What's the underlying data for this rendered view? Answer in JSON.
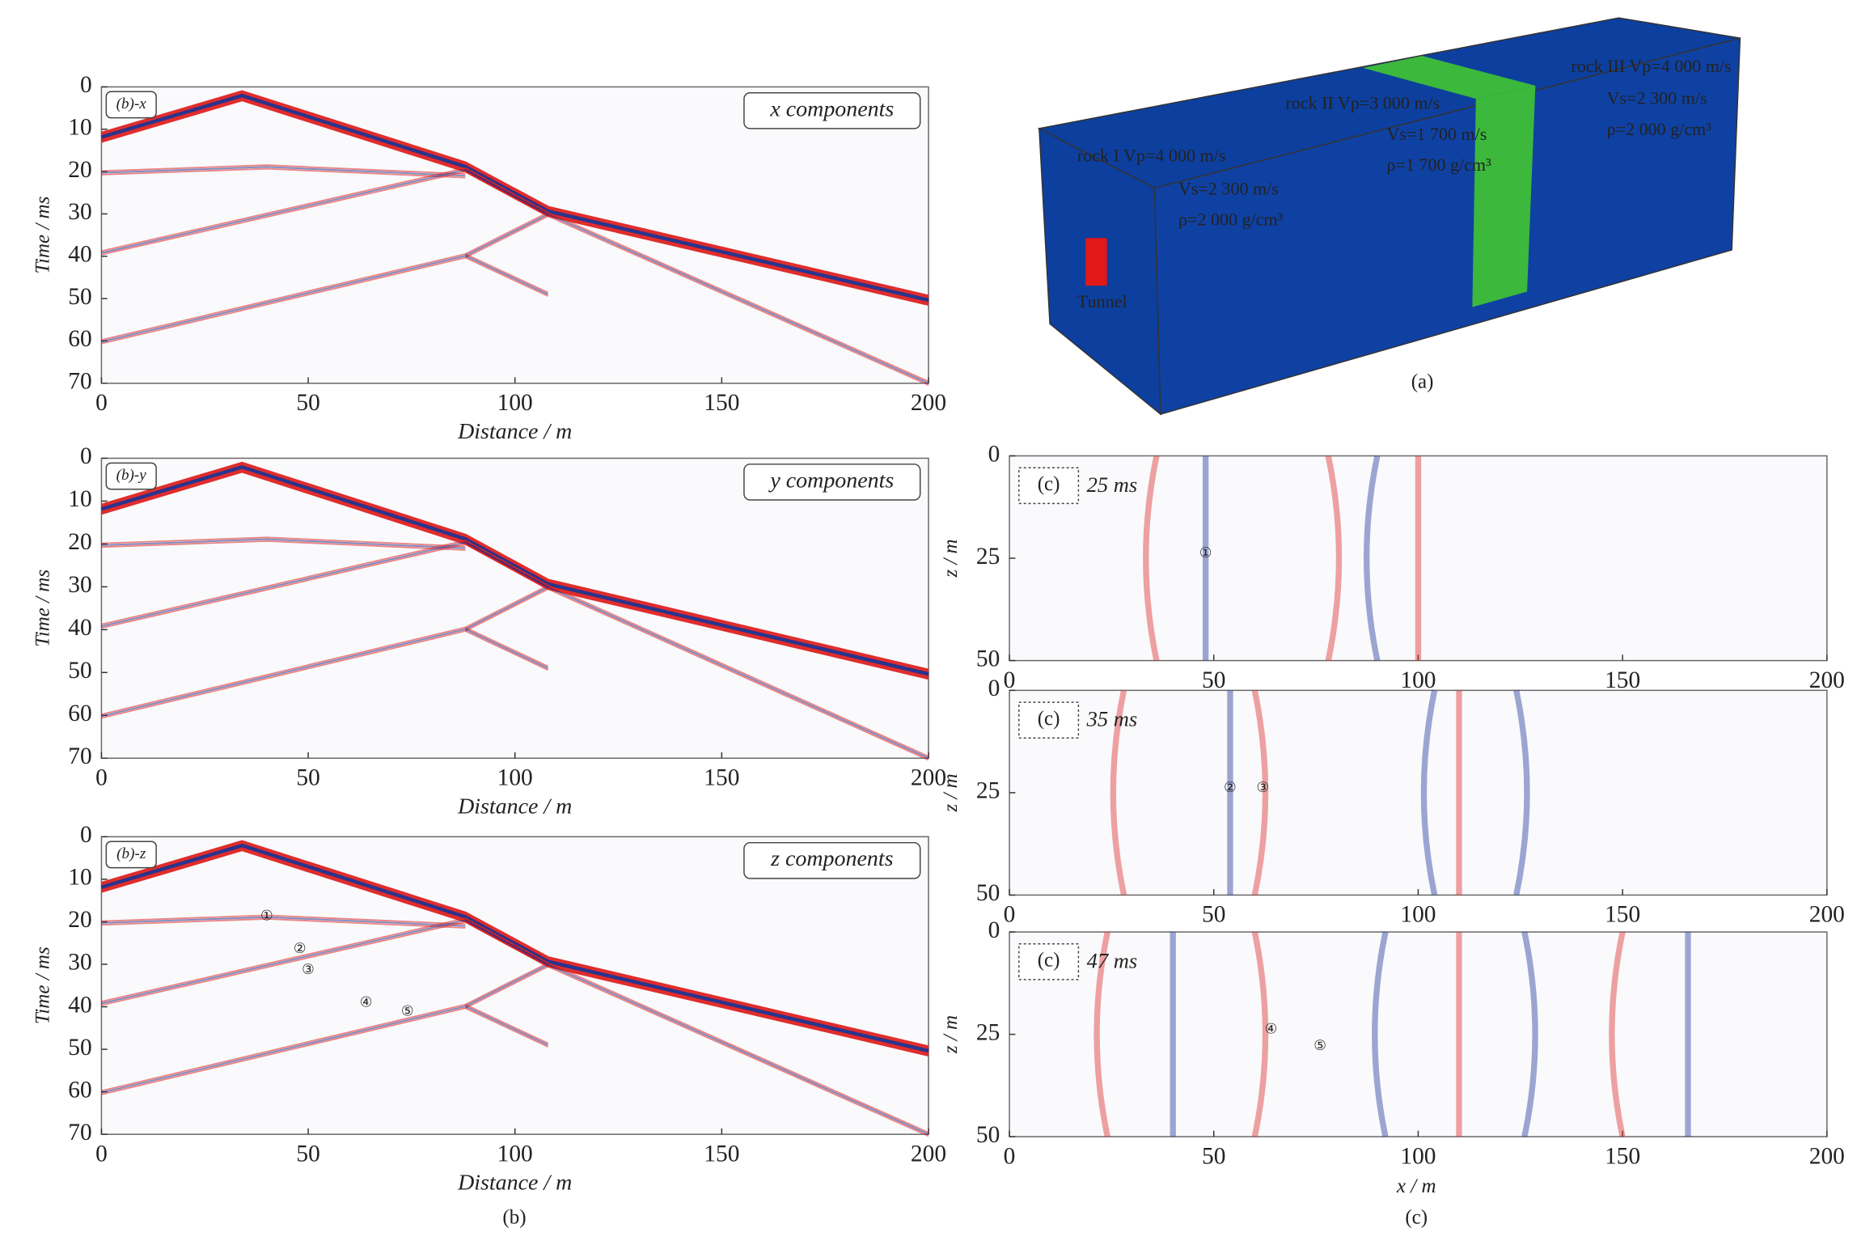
{
  "panel_a": {
    "label": "(a)",
    "tunnel": "Tunnel",
    "rock_1": [
      "rock I  Vp=4 000 m/s",
      "Vs=2 300 m/s",
      "ρ=2 000 g/cm³"
    ],
    "rock_2": [
      "rock II  Vp=3 000 m/s",
      "Vs=1 700 m/s",
      "ρ=1 700 g/cm³"
    ],
    "rock_3": [
      "rock III  Vp=4 000 m/s",
      "Vs=2 300 m/s",
      "ρ=2 000 g/cm³"
    ]
  },
  "panel_b": {
    "label": "(b)",
    "plots": [
      {
        "tag": "(b)-x",
        "legend": "x components",
        "x_label": "Distance / m",
        "y_label": "Time / ms",
        "xlim": [
          0,
          200
        ],
        "xticks": [
          0,
          50,
          100,
          150,
          200
        ],
        "ylim": [
          0,
          70
        ],
        "yticks": [
          0,
          10,
          20,
          30,
          40,
          50,
          60,
          70
        ]
      },
      {
        "tag": "(b)-y",
        "legend": "y components",
        "x_label": "Distance / m",
        "y_label": "Time / ms",
        "xlim": [
          0,
          200
        ],
        "xticks": [
          0,
          50,
          100,
          150,
          200
        ],
        "ylim": [
          0,
          70
        ],
        "yticks": [
          0,
          10,
          20,
          30,
          40,
          50,
          60,
          70
        ]
      },
      {
        "tag": "(b)-z",
        "legend": "z components",
        "x_label": "Distance / m",
        "y_label": "Time / ms",
        "xlim": [
          0,
          200
        ],
        "xticks": [
          0,
          50,
          100,
          150,
          200
        ],
        "ylim": [
          0,
          70
        ],
        "yticks": [
          0,
          10,
          20,
          30,
          40,
          50,
          60,
          70
        ],
        "markers": [
          "①",
          "②",
          "③",
          "④",
          "⑤"
        ]
      }
    ]
  },
  "panel_c": {
    "label": "(c)",
    "x_label": "x / m",
    "plots": [
      {
        "tag": "(c)",
        "time": "25 ms",
        "y_label": "z / m",
        "xlim": [
          0,
          200
        ],
        "xticks": [
          0,
          50,
          100,
          150,
          200
        ],
        "ylim": [
          0,
          50
        ],
        "yticks": [
          0,
          25,
          50
        ],
        "markers": [
          "①"
        ]
      },
      {
        "tag": "(c)",
        "time": "35 ms",
        "y_label": "z / m",
        "xlim": [
          0,
          200
        ],
        "xticks": [
          0,
          50,
          100,
          150,
          200
        ],
        "ylim": [
          0,
          50
        ],
        "yticks": [
          0,
          25,
          50
        ],
        "markers": [
          "②",
          "③"
        ]
      },
      {
        "tag": "(c)",
        "time": "47 ms",
        "y_label": "z / m",
        "xlim": [
          0,
          200
        ],
        "xticks": [
          0,
          50,
          100,
          150,
          200
        ],
        "ylim": [
          0,
          50
        ],
        "yticks": [
          0,
          25,
          50
        ],
        "markers": [
          "④",
          "⑤"
        ]
      }
    ]
  }
}
